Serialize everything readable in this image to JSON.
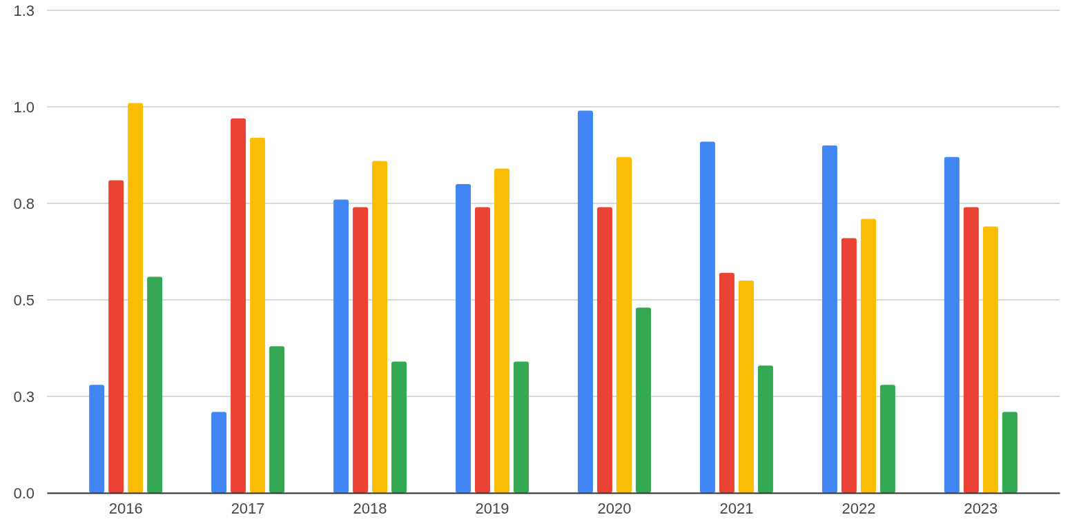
{
  "chart_data": {
    "type": "bar",
    "categories": [
      "2016",
      "2017",
      "2018",
      "2019",
      "2020",
      "2021",
      "2022",
      "2023"
    ],
    "series": [
      {
        "color": "#4285f4",
        "values": [
          0.28,
          0.21,
          0.76,
          0.8,
          0.99,
          0.91,
          0.9,
          0.87
        ]
      },
      {
        "color": "#ea4335",
        "values": [
          0.81,
          0.97,
          0.74,
          0.74,
          0.74,
          0.57,
          0.66,
          0.74
        ]
      },
      {
        "color": "#fbbc04",
        "values": [
          1.01,
          0.92,
          0.86,
          0.84,
          0.87,
          0.55,
          0.71,
          0.69
        ]
      },
      {
        "color": "#34a853",
        "values": [
          0.56,
          0.38,
          0.34,
          0.34,
          0.48,
          0.33,
          0.28,
          0.21
        ]
      }
    ],
    "ylim": [
      0,
      1.25
    ],
    "yticks": [
      {
        "value": 0,
        "label": "0.0"
      },
      {
        "value": 0.25,
        "label": "0.3"
      },
      {
        "value": 0.5,
        "label": "0.5"
      },
      {
        "value": 0.75,
        "label": "0.8"
      },
      {
        "value": 1,
        "label": "1.0"
      },
      {
        "value": 1.25,
        "label": "1.3"
      }
    ],
    "grid": "y"
  }
}
